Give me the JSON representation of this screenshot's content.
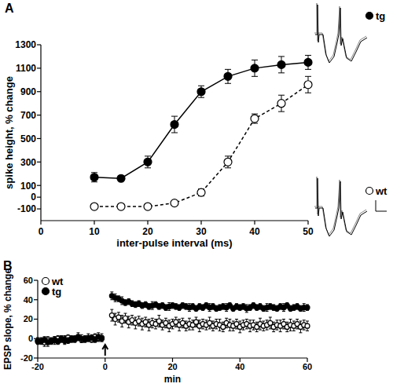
{
  "chart_data": [
    {
      "type": "line",
      "title": "A",
      "x_label": "inter-pulse interval (ms)",
      "y_label": "spike height, % change",
      "x": [
        10,
        15,
        20,
        25,
        30,
        35,
        40,
        45,
        50
      ],
      "xlim": [
        0,
        50
      ],
      "xticks": [
        0,
        10,
        20,
        30,
        40,
        50
      ],
      "ylim": [
        -200,
        1300
      ],
      "yticks": [
        -100,
        0,
        100,
        300,
        500,
        700,
        900,
        1100,
        1300
      ],
      "legend": "right",
      "series": [
        {
          "name": "tg",
          "color": "#000000",
          "marker": "filled-circle",
          "line_style": "solid",
          "values": [
            170,
            160,
            300,
            620,
            900,
            1030,
            1100,
            1130,
            1150
          ],
          "errors": [
            40,
            20,
            50,
            70,
            50,
            60,
            70,
            70,
            60
          ]
        },
        {
          "name": "wt",
          "color": "#000000",
          "marker": "open-circle",
          "line_style": "dashed",
          "values": [
            -80,
            -80,
            -80,
            -50,
            40,
            300,
            670,
            800,
            960
          ],
          "errors": [
            15,
            15,
            15,
            15,
            30,
            50,
            40,
            70,
            70
          ]
        }
      ]
    },
    {
      "type": "scatter",
      "title": "B",
      "x_label": "min",
      "y_label": "EPSP slope, % change",
      "x": [
        -20,
        -19,
        -18,
        -17,
        -16,
        -15,
        -14,
        -13,
        -12,
        -11,
        -10,
        -9,
        -8,
        -7,
        -6,
        -5,
        -4,
        -3,
        -2,
        -1,
        2,
        3,
        4,
        5,
        6,
        7,
        8,
        9,
        10,
        11,
        12,
        13,
        14,
        15,
        16,
        17,
        18,
        19,
        20,
        21,
        22,
        23,
        24,
        25,
        26,
        27,
        28,
        29,
        30,
        31,
        32,
        33,
        34,
        35,
        36,
        37,
        38,
        39,
        40,
        41,
        42,
        43,
        44,
        45,
        46,
        47,
        48,
        49,
        50,
        51,
        52,
        53,
        54,
        55,
        56,
        57,
        58,
        59,
        60
      ],
      "xlim": [
        -20,
        60
      ],
      "xticks": [
        -20,
        0,
        20,
        40,
        60
      ],
      "ylim": [
        -20,
        60
      ],
      "yticks": [
        -20,
        0,
        20,
        40,
        60
      ],
      "legend": "upper left",
      "arrow": {
        "x": 0
      },
      "series": [
        {
          "name": "wt",
          "color": "#000000",
          "marker": "open-circle",
          "values": [
            -3,
            -2,
            -4,
            -1,
            -3,
            -2,
            0,
            -1,
            -2,
            1,
            -1,
            0,
            2,
            -1,
            0,
            1,
            -1,
            2,
            0,
            1,
            24,
            20,
            22,
            18,
            21,
            17,
            19,
            16,
            18,
            15,
            17,
            14,
            16,
            15,
            18,
            14,
            16,
            13,
            15,
            17,
            14,
            16,
            13,
            15,
            14,
            17,
            13,
            15,
            14,
            16,
            13,
            15,
            14,
            12,
            16,
            14,
            13,
            15,
            12,
            14,
            15,
            13,
            14,
            12,
            15,
            13,
            14,
            16,
            12,
            14,
            13,
            15,
            12,
            14,
            13,
            15,
            12,
            14,
            13
          ],
          "errors": [
            3,
            3,
            4,
            3,
            3,
            4,
            3,
            3,
            4,
            3,
            3,
            3,
            4,
            3,
            3,
            4,
            3,
            3,
            3,
            4,
            6,
            6,
            5,
            6,
            5,
            6,
            5,
            6,
            5,
            6,
            5,
            6,
            5,
            5,
            6,
            5,
            5,
            6,
            5,
            5,
            6,
            5,
            5,
            6,
            5,
            5,
            6,
            5,
            5,
            6,
            5,
            5,
            6,
            5,
            5,
            6,
            5,
            5,
            6,
            5,
            5,
            6,
            5,
            5,
            6,
            5,
            5,
            6,
            5,
            5,
            6,
            5,
            5,
            6,
            5,
            5,
            6,
            5,
            5
          ]
        },
        {
          "name": "tg",
          "color": "#000000",
          "marker": "filled-circle",
          "values": [
            -2,
            -3,
            -1,
            -4,
            -2,
            -1,
            -3,
            0,
            -1,
            -2,
            0,
            -1,
            1,
            0,
            -1,
            0,
            1,
            -1,
            2,
            0,
            44,
            42,
            41,
            39,
            37,
            38,
            36,
            35,
            36,
            34,
            35,
            33,
            34,
            35,
            33,
            34,
            32,
            33,
            34,
            33,
            32,
            34,
            33,
            32,
            33,
            31,
            33,
            32,
            34,
            32,
            33,
            31,
            32,
            33,
            32,
            34,
            31,
            33,
            32,
            33,
            31,
            32,
            34,
            32,
            33,
            31,
            32,
            33,
            32,
            31,
            33,
            32,
            34,
            31,
            32,
            33,
            31,
            32,
            32
          ],
          "errors": [
            3,
            3,
            3,
            4,
            3,
            3,
            3,
            3,
            4,
            3,
            3,
            3,
            3,
            4,
            3,
            3,
            3,
            3,
            4,
            3,
            4,
            4,
            3,
            4,
            3,
            3,
            3,
            3,
            3,
            3,
            3,
            3,
            4,
            3,
            3,
            3,
            3,
            4,
            3,
            3,
            3,
            3,
            3,
            4,
            3,
            3,
            3,
            3,
            3,
            4,
            3,
            3,
            3,
            3,
            4,
            3,
            3,
            3,
            3,
            3,
            4,
            3,
            3,
            3,
            3,
            3,
            4,
            3,
            3,
            3,
            3,
            4,
            3,
            3,
            3,
            3,
            3,
            4,
            3
          ]
        }
      ]
    }
  ]
}
